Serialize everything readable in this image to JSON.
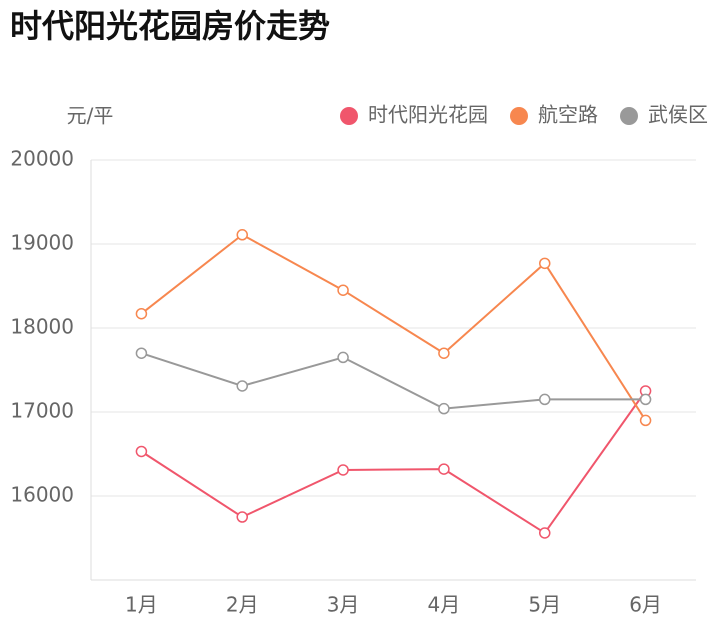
{
  "chart_data": {
    "type": "line",
    "title": "时代阳光花园房价走势",
    "y_label": "元/平",
    "categories": [
      "1月",
      "2月",
      "3月",
      "4月",
      "5月",
      "6月"
    ],
    "series": [
      {
        "name": "时代阳光花园",
        "color": "#f0566c",
        "values": [
          16530,
          15750,
          16310,
          16320,
          15560,
          17250
        ]
      },
      {
        "name": "航空路",
        "color": "#f7874f",
        "values": [
          18170,
          19110,
          18450,
          17700,
          18770,
          16900
        ]
      },
      {
        "name": "武侯区",
        "color": "#999999",
        "values": [
          17700,
          17310,
          17650,
          17040,
          17150,
          17150
        ]
      }
    ],
    "ylim": [
      15000,
      20000
    ],
    "yticks": [
      16000,
      17000,
      18000,
      19000,
      20000
    ],
    "grid": true,
    "legend": "top-right"
  }
}
